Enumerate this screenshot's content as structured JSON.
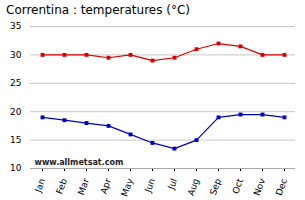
{
  "chart_data": {
    "type": "line",
    "title": "Correntina : temperatures (°C)",
    "categories": [
      "Jan",
      "Feb",
      "Mar",
      "Apr",
      "May",
      "Jun",
      "Jul",
      "Aug",
      "Sep",
      "Oct",
      "Nov",
      "Dec"
    ],
    "series": [
      {
        "color": "#dd0000",
        "values": [
          30.0,
          30.0,
          30.0,
          29.5,
          30.0,
          29.0,
          29.5,
          31.0,
          32.0,
          31.5,
          30.0,
          30.0
        ]
      },
      {
        "color": "#0000cc",
        "values": [
          19.0,
          18.5,
          18.0,
          17.5,
          16.0,
          14.5,
          13.5,
          15.0,
          19.0,
          19.5,
          19.5,
          19.0
        ]
      }
    ],
    "ylim": [
      10,
      35
    ],
    "yticks": [
      10,
      15,
      20,
      25,
      30,
      35
    ],
    "grid": "y",
    "marker": "square",
    "annotations": [
      "www.allmetsat.com"
    ]
  }
}
